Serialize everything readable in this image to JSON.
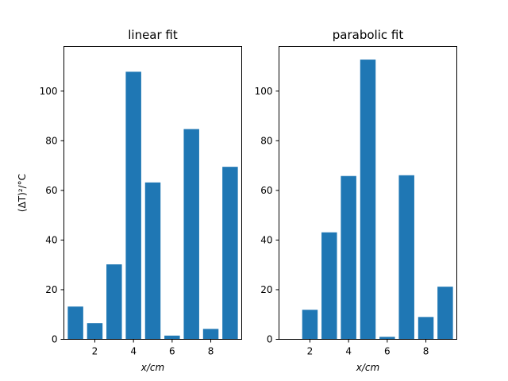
{
  "figure": {
    "shared_ylabel": "(ΔT)²/°C"
  },
  "chart_data": [
    {
      "type": "bar",
      "title": "linear fit",
      "xlabel": "x/cm",
      "ylabel": "(ΔT)²/°C",
      "x": [
        1,
        2,
        3,
        4,
        5,
        6,
        7,
        8,
        9
      ],
      "values": [
        13.2,
        6.5,
        30.2,
        107.8,
        63.2,
        1.5,
        84.7,
        4.2,
        69.5
      ],
      "xlim": [
        0.4,
        9.6
      ],
      "ylim": [
        0,
        118
      ],
      "xticks": [
        2,
        4,
        6,
        8
      ],
      "yticks": [
        0,
        20,
        40,
        60,
        80,
        100
      ],
      "color": "#1f77b4"
    },
    {
      "type": "bar",
      "title": "parabolic fit",
      "xlabel": "x/cm",
      "ylabel": "",
      "x": [
        1,
        2,
        3,
        4,
        5,
        6,
        7,
        8,
        9
      ],
      "values": [
        0,
        11.9,
        43.1,
        65.8,
        112.7,
        1.0,
        66.1,
        9.0,
        21.2
      ],
      "xlim": [
        0.4,
        9.6
      ],
      "ylim": [
        0,
        118
      ],
      "xticks": [
        2,
        4,
        6,
        8
      ],
      "yticks": [
        0,
        20,
        40,
        60,
        80,
        100
      ],
      "color": "#1f77b4"
    }
  ]
}
